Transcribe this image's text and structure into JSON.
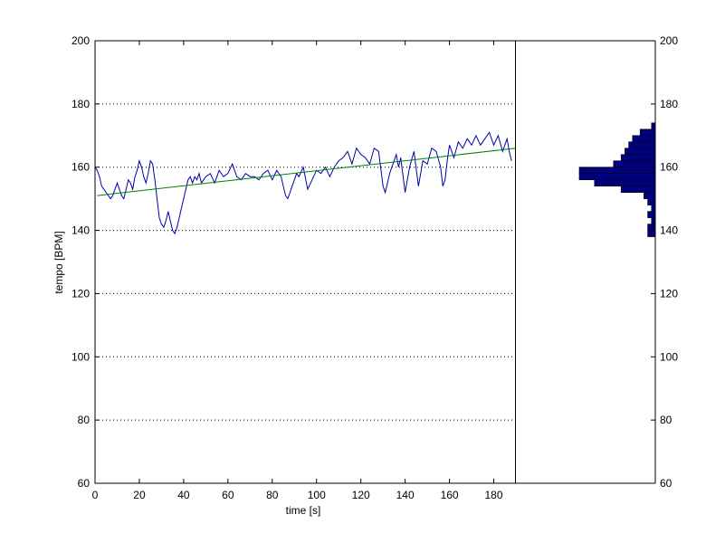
{
  "chart_data": [
    {
      "type": "line",
      "title": "",
      "xlabel": "time [s]",
      "ylabel": "tempo [BPM]",
      "xlim": [
        0,
        190
      ],
      "ylim": [
        60,
        200
      ],
      "xticks": [
        0,
        20,
        40,
        60,
        80,
        100,
        120,
        140,
        160,
        180
      ],
      "yticks": [
        60,
        80,
        100,
        120,
        140,
        160,
        180,
        200
      ],
      "grid": "horizontal dotted",
      "series": [
        {
          "kind": "line",
          "color": "#0000aa",
          "x": [
            0,
            1,
            2,
            3,
            4,
            5,
            6,
            7,
            8,
            9,
            10,
            11,
            12,
            13,
            14,
            15,
            16,
            17,
            18,
            19,
            20,
            21,
            22,
            23,
            24,
            25,
            26,
            27,
            28,
            29,
            30,
            31,
            32,
            33,
            34,
            35,
            36,
            37,
            38,
            39,
            40,
            41,
            42,
            43,
            44,
            45,
            46,
            47,
            48,
            49,
            50,
            52,
            54,
            56,
            58,
            60,
            62,
            64,
            66,
            68,
            70,
            72,
            74,
            76,
            78,
            80,
            82,
            84,
            85,
            86,
            87,
            88,
            89,
            90,
            91,
            92,
            94,
            96,
            98,
            100,
            102,
            104,
            106,
            108,
            110,
            112,
            114,
            116,
            118,
            120,
            122,
            124,
            126,
            128,
            130,
            131,
            132,
            133,
            134,
            135,
            136,
            137,
            138,
            140,
            142,
            144,
            146,
            148,
            150,
            152,
            154,
            156,
            157,
            158,
            159,
            160,
            162,
            164,
            166,
            168,
            170,
            172,
            174,
            176,
            178,
            180,
            182,
            184,
            186,
            187,
            188
          ],
          "y": [
            160,
            159,
            157,
            154,
            153,
            152,
            151,
            150,
            151,
            153,
            155,
            153,
            151,
            150,
            153,
            156,
            155,
            153,
            157,
            159,
            162,
            160,
            157,
            155,
            158,
            162,
            161,
            156,
            150,
            144,
            142,
            141,
            143,
            146,
            143,
            140,
            139,
            141,
            144,
            147,
            150,
            153,
            156,
            157,
            155,
            157,
            156,
            158,
            155,
            156,
            157,
            158,
            155,
            159,
            157,
            158,
            161,
            157,
            156,
            158,
            157,
            157,
            156,
            158,
            159,
            156,
            159,
            157,
            154,
            151,
            150,
            152,
            154,
            156,
            158,
            157,
            160,
            153,
            156,
            159,
            158,
            160,
            157,
            160,
            162,
            163,
            165,
            161,
            166,
            164,
            163,
            161,
            166,
            165,
            154,
            152,
            155,
            158,
            160,
            162,
            164,
            160,
            163,
            152,
            160,
            165,
            154,
            162,
            161,
            166,
            165,
            160,
            154,
            156,
            162,
            167,
            163,
            168,
            166,
            169,
            167,
            170,
            167,
            169,
            171,
            167,
            170,
            165,
            169,
            165,
            162
          ]
        },
        {
          "kind": "trend",
          "color": "#008000",
          "x": [
            1,
            190
          ],
          "y": [
            151,
            166
          ]
        }
      ]
    },
    {
      "type": "bar",
      "orientation": "horizontal",
      "title": "",
      "xlabel": "",
      "ylabel": "",
      "ylim": [
        60,
        200
      ],
      "yticks": [
        60,
        80,
        100,
        120,
        140,
        160,
        180,
        200
      ],
      "color": "#00007f",
      "bins": [
        {
          "lo": 138,
          "hi": 140,
          "count": 2
        },
        {
          "lo": 140,
          "hi": 142,
          "count": 2
        },
        {
          "lo": 142,
          "hi": 144,
          "count": 1
        },
        {
          "lo": 144,
          "hi": 146,
          "count": 2
        },
        {
          "lo": 146,
          "hi": 148,
          "count": 1
        },
        {
          "lo": 148,
          "hi": 150,
          "count": 2
        },
        {
          "lo": 150,
          "hi": 152,
          "count": 3
        },
        {
          "lo": 152,
          "hi": 154,
          "count": 9
        },
        {
          "lo": 154,
          "hi": 156,
          "count": 16
        },
        {
          "lo": 156,
          "hi": 158,
          "count": 20
        },
        {
          "lo": 158,
          "hi": 160,
          "count": 20
        },
        {
          "lo": 160,
          "hi": 162,
          "count": 11
        },
        {
          "lo": 162,
          "hi": 164,
          "count": 9
        },
        {
          "lo": 164,
          "hi": 166,
          "count": 8
        },
        {
          "lo": 166,
          "hi": 168,
          "count": 7
        },
        {
          "lo": 168,
          "hi": 170,
          "count": 6
        },
        {
          "lo": 170,
          "hi": 172,
          "count": 4
        },
        {
          "lo": 172,
          "hi": 174,
          "count": 1
        }
      ]
    }
  ]
}
